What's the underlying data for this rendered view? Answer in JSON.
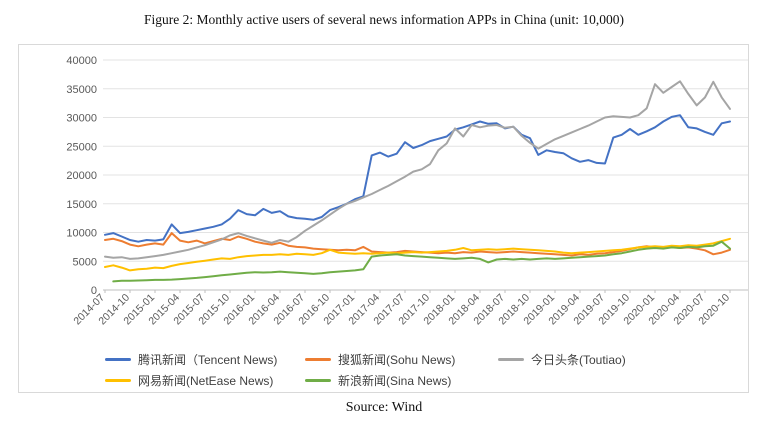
{
  "title": "Figure 2: Monthly active users of several news information APPs in China (unit: 10,000)",
  "source": "Source: Wind",
  "chart_data": {
    "type": "line",
    "title": "Figure 2: Monthly active users of several news information APPs in China (unit: 10,000)",
    "unit": "10,000",
    "xlabel": "",
    "ylabel": "",
    "ylim": [
      0,
      40000
    ],
    "y_ticks": [
      0,
      5000,
      10000,
      15000,
      20000,
      25000,
      30000,
      35000,
      40000
    ],
    "grid": true,
    "legend_position": "bottom",
    "x_monthly_start": "2014-07",
    "x_monthly_end": "2020-10",
    "x_tick_labels": [
      "2014-07",
      "2014-10",
      "2015-01",
      "2015-04",
      "2015-07",
      "2015-10",
      "2016-01",
      "2016-04",
      "2016-07",
      "2016-10",
      "2017-01",
      "2017-04",
      "2017-07",
      "2017-10",
      "2018-01",
      "2018-04",
      "2018-07",
      "2018-10",
      "2019-01",
      "2019-04",
      "2019-07",
      "2019-10",
      "2020-01",
      "2020-04",
      "2020-07",
      "2020-10"
    ],
    "series": [
      {
        "name": "腾讯新闻（Tencent News)",
        "color": "#4472C4",
        "values": [
          9600,
          9900,
          9300,
          8700,
          8400,
          8700,
          8600,
          8800,
          11400,
          9900,
          10100,
          10400,
          10700,
          11000,
          11400,
          12400,
          13900,
          13200,
          13000,
          14100,
          13400,
          13700,
          12800,
          12500,
          12400,
          12200,
          12700,
          13900,
          14400,
          15000,
          15800,
          16300,
          23400,
          23900,
          23200,
          23700,
          25700,
          24700,
          25200,
          25900,
          26300,
          26700,
          27900,
          28300,
          28800,
          29300,
          28900,
          29000,
          28100,
          28400,
          27000,
          26400,
          23500,
          24300,
          24000,
          23800,
          22900,
          22300,
          22600,
          22100,
          22000,
          26500,
          27000,
          28000,
          27000,
          27600,
          28300,
          29300,
          30100,
          30400,
          28300,
          28100,
          27500,
          27000,
          29000,
          29300
        ]
      },
      {
        "name": "搜狐新闻(Sohu News)",
        "color": "#ED7D31",
        "values": [
          8700,
          8900,
          8500,
          7900,
          7600,
          7900,
          8100,
          7900,
          9900,
          8600,
          8300,
          8600,
          8100,
          8500,
          8900,
          8700,
          9300,
          8900,
          8400,
          8100,
          7900,
          8200,
          7700,
          7500,
          7400,
          7200,
          7100,
          7000,
          6900,
          7000,
          6900,
          7500,
          6700,
          6600,
          6500,
          6600,
          6800,
          6700,
          6600,
          6500,
          6400,
          6500,
          6400,
          6600,
          6500,
          6700,
          6600,
          6500,
          6600,
          6700,
          6600,
          6500,
          6400,
          6300,
          6200,
          6100,
          6000,
          6200,
          6100,
          6300,
          6400,
          6600,
          6800,
          7100,
          7400,
          7600,
          7400,
          7300,
          7500,
          7300,
          7400,
          7200,
          6900,
          6200,
          6500,
          7000
        ]
      },
      {
        "name": "今日头条(Toutiao)",
        "color": "#A5A5A5",
        "values": [
          5800,
          5600,
          5700,
          5400,
          5500,
          5700,
          5900,
          6100,
          6400,
          6700,
          7000,
          7400,
          7800,
          8300,
          8800,
          9500,
          9900,
          9400,
          9000,
          8600,
          8200,
          8700,
          8400,
          9200,
          10300,
          11200,
          12100,
          13100,
          14100,
          15000,
          15500,
          16100,
          16700,
          17400,
          18100,
          18900,
          19700,
          20600,
          21000,
          21900,
          24300,
          25500,
          28100,
          26700,
          28700,
          28300,
          28600,
          28700,
          28200,
          28400,
          26800,
          25600,
          24600,
          25400,
          26200,
          26800,
          27400,
          28000,
          28600,
          29300,
          30000,
          30200,
          30100,
          30000,
          30400,
          31600,
          35800,
          34300,
          35300,
          36300,
          34100,
          32100,
          33500,
          36200,
          33500,
          31500
        ]
      },
      {
        "name": "网易新闻(NetEase News)",
        "color": "#FFC000",
        "values": [
          4000,
          4300,
          3900,
          3400,
          3600,
          3700,
          3900,
          3800,
          4200,
          4500,
          4700,
          4900,
          5100,
          5300,
          5500,
          5400,
          5700,
          5900,
          6000,
          6100,
          6100,
          6200,
          6100,
          6300,
          6200,
          6100,
          6400,
          7000,
          6500,
          6400,
          6300,
          6400,
          6300,
          6400,
          6500,
          6400,
          6500,
          6600,
          6500,
          6600,
          6700,
          6800,
          7000,
          7300,
          6900,
          7000,
          7100,
          7000,
          7100,
          7200,
          7100,
          7000,
          6900,
          6800,
          6700,
          6500,
          6400,
          6500,
          6600,
          6700,
          6800,
          6900,
          7000,
          7200,
          7400,
          7500,
          7600,
          7500,
          7700,
          7600,
          7800,
          7700,
          7900,
          8100,
          8500,
          8900
        ]
      },
      {
        "name": "新浪新闻(Sina News)",
        "color": "#70AD47",
        "values": [
          null,
          1500,
          1600,
          1600,
          1650,
          1700,
          1750,
          1750,
          1800,
          1900,
          2000,
          2100,
          2250,
          2400,
          2550,
          2700,
          2850,
          3000,
          3100,
          3050,
          3100,
          3200,
          3100,
          3000,
          2900,
          2800,
          2900,
          3100,
          3200,
          3300,
          3400,
          3600,
          5800,
          6000,
          6100,
          6200,
          6000,
          5900,
          5800,
          5700,
          5600,
          5500,
          5400,
          5500,
          5600,
          5400,
          4800,
          5300,
          5400,
          5300,
          5400,
          5300,
          5400,
          5500,
          5400,
          5500,
          5600,
          5700,
          5800,
          5900,
          6000,
          6200,
          6400,
          6700,
          7000,
          7200,
          7300,
          7200,
          7400,
          7300,
          7500,
          7400,
          7600,
          7700,
          8400,
          7200
        ]
      }
    ]
  }
}
